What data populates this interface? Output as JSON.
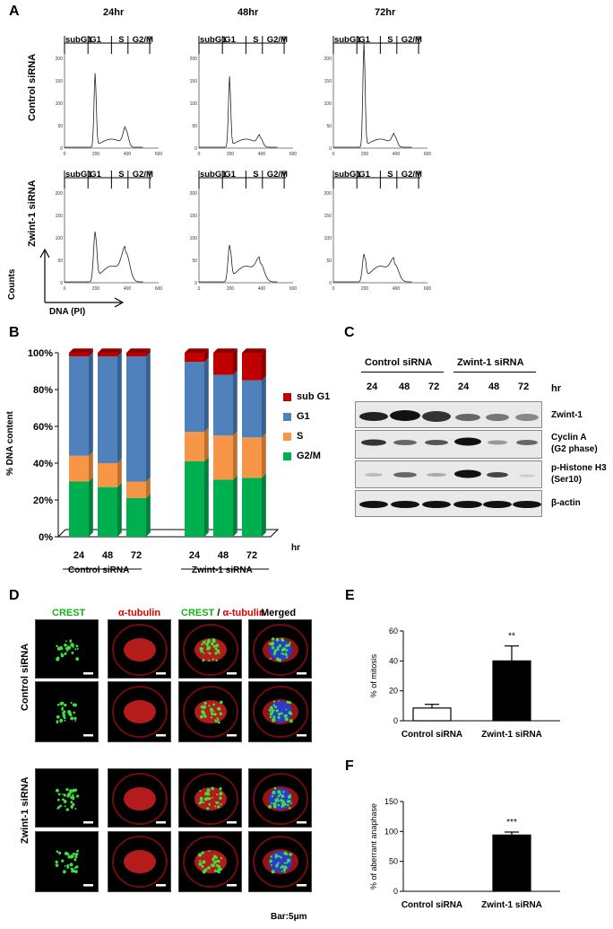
{
  "panels": {
    "a": "A",
    "b": "B",
    "c": "C",
    "d": "D",
    "e": "E",
    "f": "F"
  },
  "flow": {
    "timepoints": [
      "24hr",
      "48hr",
      "72hr"
    ],
    "rows": [
      "Control siRNA",
      "Zwint-1 siRNA"
    ],
    "phase_labels": [
      "subG1",
      "G1",
      "S",
      "G2/M"
    ],
    "x_ticks": [
      "0",
      "200",
      "400",
      "600"
    ],
    "y_ticks": [
      "0",
      "50",
      "100",
      "150",
      "200"
    ],
    "counts_label": "Counts",
    "dna_label": "DNA (PI)"
  },
  "bar_b": {
    "ylabel": "% DNA content",
    "unit_label": "hr",
    "group_labels": [
      "Control siRNA",
      "Zwint-1 siRNA"
    ],
    "legend": [
      "sub G1",
      "G1",
      "S",
      "G2/M"
    ],
    "colors": {
      "subg1": "#c00000",
      "g1": "#4f81bd",
      "s": "#f79646",
      "g2m": "#00b050"
    }
  },
  "blot": {
    "groups": [
      "Control siRNA",
      "Zwint-1 siRNA"
    ],
    "hours": [
      "24",
      "48",
      "72",
      "24",
      "48",
      "72"
    ],
    "hr_label": "hr",
    "rows": [
      {
        "label": "Zwint-1",
        "label2": ""
      },
      {
        "label": "Cyclin A",
        "label2": "(G2 phase)"
      },
      {
        "label": "p-Histone H3",
        "label2": "(Ser10)"
      },
      {
        "label": "β-actin",
        "label2": ""
      }
    ]
  },
  "micro": {
    "headers": [
      "CREST",
      "α-tubulin",
      "CREST",
      "/",
      "α-tubulin",
      "Merged"
    ],
    "rows": [
      "Control siRNA",
      "Zwint-1 siRNA"
    ],
    "bar_label": "Bar:5μm"
  },
  "chart_data": [
    {
      "type": "bar",
      "stacked": true,
      "categories": [
        "24",
        "48",
        "72",
        "24",
        "48",
        "72"
      ],
      "groups": [
        "Control siRNA",
        "Control siRNA",
        "Control siRNA",
        "Zwint-1 siRNA",
        "Zwint-1 siRNA",
        "Zwint-1 siRNA"
      ],
      "series": [
        {
          "name": "G2/M",
          "values": [
            30,
            27,
            21,
            41,
            31,
            32
          ]
        },
        {
          "name": "S",
          "values": [
            14,
            13,
            9,
            16,
            24,
            22
          ]
        },
        {
          "name": "G1",
          "values": [
            54,
            58,
            68,
            38,
            33,
            31
          ]
        },
        {
          "name": "sub G1",
          "values": [
            2,
            2,
            2,
            5,
            12,
            15
          ]
        }
      ],
      "ylabel": "% DNA content",
      "ylim": [
        0,
        100
      ],
      "yticks": [
        "0%",
        "20%",
        "40%",
        "60%",
        "80%",
        "100%"
      ]
    },
    {
      "type": "bar",
      "categories": [
        "Control siRNA",
        "Zwint-1 siRNA"
      ],
      "values": [
        8.5,
        40
      ],
      "errors": [
        2.5,
        10
      ],
      "significance": [
        "",
        "**"
      ],
      "ylabel": "% of mitosis",
      "ylim": [
        0,
        60
      ],
      "yticks": [
        "0",
        "20",
        "40",
        "60"
      ]
    },
    {
      "type": "bar",
      "categories": [
        "Control siRNA",
        "Zwint-1 siRNA"
      ],
      "values": [
        0,
        94
      ],
      "errors": [
        0,
        5
      ],
      "significance": [
        "",
        "***"
      ],
      "ylabel": "% of aberrant anaphase",
      "ylim": [
        0,
        150
      ],
      "yticks": [
        "0",
        "50",
        "100",
        "150"
      ]
    }
  ]
}
